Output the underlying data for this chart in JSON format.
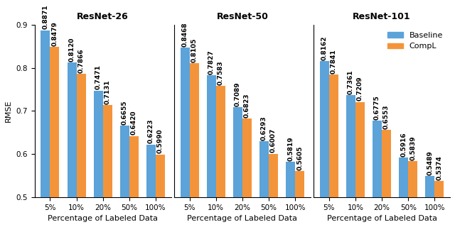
{
  "resnet26": {
    "baseline": [
      0.8871,
      0.812,
      0.7471,
      0.6655,
      0.6223
    ],
    "compl": [
      0.8479,
      0.7866,
      0.7131,
      0.642,
      0.599
    ]
  },
  "resnet50": {
    "baseline": [
      0.8468,
      0.7827,
      0.7089,
      0.6293,
      0.5819
    ],
    "compl": [
      0.8105,
      0.7583,
      0.6823,
      0.6007,
      0.5605
    ]
  },
  "resnet101": {
    "baseline": [
      0.8162,
      0.7361,
      0.6775,
      0.5916,
      0.5489
    ],
    "compl": [
      0.7841,
      0.7209,
      0.6553,
      0.5839,
      0.5374
    ]
  },
  "categories": [
    "5%",
    "10%",
    "20%",
    "50%",
    "100%"
  ],
  "titles": [
    "ResNet-26",
    "ResNet-50",
    "ResNet-101"
  ],
  "ylabel": "RMSE",
  "xlabel": "Percentage of Labeled Data",
  "ylim": [
    0.5,
    0.9
  ],
  "yticks": [
    0.5,
    0.6,
    0.7,
    0.8,
    0.9
  ],
  "baseline_color": "#5BA3D9",
  "compl_color": "#F4943A",
  "legend_baseline": "Baseline",
  "legend_compl": "CompL",
  "bar_width": 0.35,
  "title_fontsize": 9,
  "label_fontsize": 6.5,
  "axis_fontsize": 8,
  "tick_fontsize": 7.5
}
